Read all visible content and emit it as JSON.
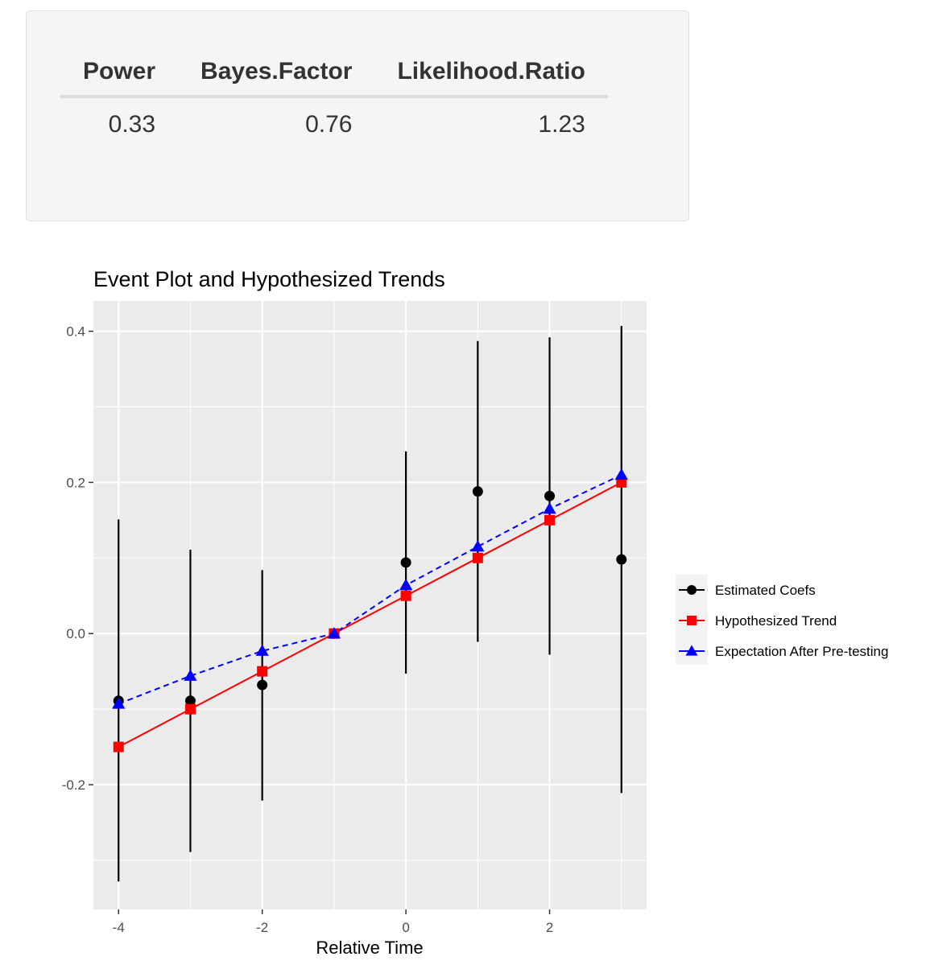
{
  "stats_table": {
    "headers": [
      "Power",
      "Bayes.Factor",
      "Likelihood.Ratio"
    ],
    "values": [
      "0.33",
      "0.76",
      "1.23"
    ]
  },
  "chart_data": {
    "type": "line",
    "title": "Event Plot and Hypothesized Trends",
    "xlabel": "Relative Time",
    "ylabel": "",
    "xlim": [
      -4.35,
      3.35
    ],
    "ylim": [
      -0.365,
      0.44
    ],
    "x_ticks": [
      -4,
      -2,
      0,
      2
    ],
    "x_tick_labels": [
      "-4",
      "-2",
      "0",
      "2"
    ],
    "y_ticks": [
      -0.2,
      0.0,
      0.2,
      0.4
    ],
    "y_tick_labels": [
      "-0.2",
      "0.0",
      "0.2",
      "0.4"
    ],
    "grid": true,
    "legend_position": "right",
    "x": [
      -4,
      -3,
      -2,
      -1,
      0,
      1,
      2,
      3
    ],
    "series": [
      {
        "name": "Estimated Coefs",
        "color": "#000000",
        "marker": "circle",
        "line": "none",
        "values": [
          -0.089,
          -0.089,
          -0.068,
          0.0,
          0.094,
          0.188,
          0.182,
          0.098
        ],
        "ci_lower": [
          -0.328,
          -0.289,
          -0.221,
          0.0,
          -0.053,
          -0.011,
          -0.028,
          -0.211
        ],
        "ci_upper": [
          0.151,
          0.111,
          0.084,
          0.0,
          0.241,
          0.387,
          0.392,
          0.407
        ]
      },
      {
        "name": "Hypothesized Trend",
        "color": "#ff0000",
        "marker": "square",
        "line": "solid",
        "values": [
          -0.15,
          -0.1,
          -0.05,
          0.0,
          0.05,
          0.1,
          0.15,
          0.2
        ]
      },
      {
        "name": "Expectation After Pre-testing",
        "color": "#0000ff",
        "marker": "triangle",
        "line": "dashed",
        "values": [
          -0.093,
          -0.056,
          -0.023,
          0.0,
          0.064,
          0.115,
          0.165,
          0.21
        ]
      }
    ]
  }
}
